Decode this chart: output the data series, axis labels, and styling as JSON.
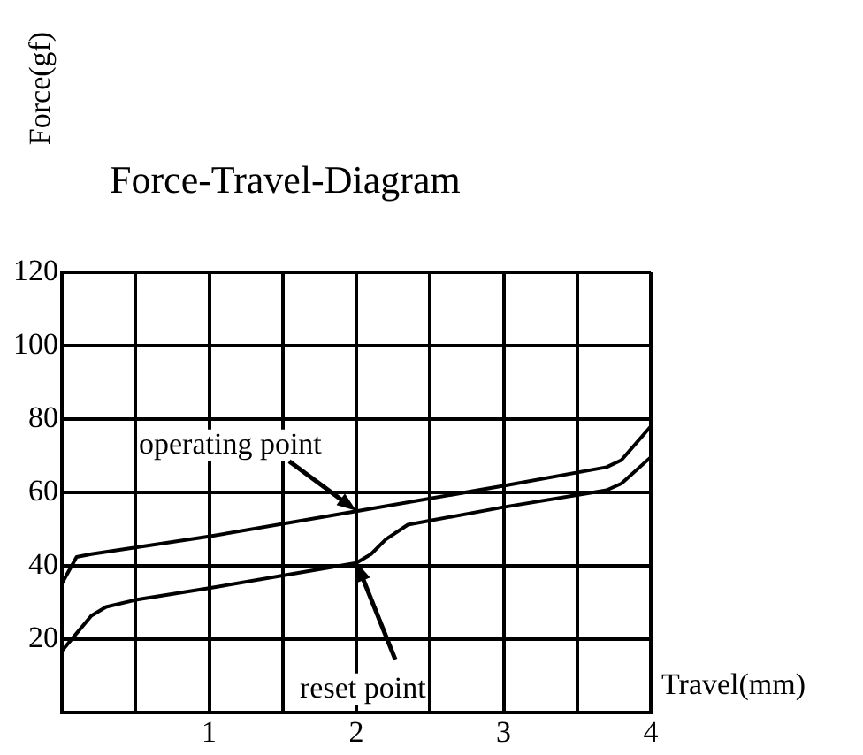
{
  "chart_data": {
    "type": "line",
    "title": "Force-Travel-Diagram",
    "xlabel": "Travel(mm)",
    "ylabel": "Force(gf)",
    "xlim": [
      0,
      4
    ],
    "xticks": [
      {
        "value": 0,
        "label": null
      },
      {
        "value": 0.5,
        "label": null
      },
      1,
      {
        "value": 1.5,
        "label": null
      },
      2,
      {
        "value": 2.5,
        "label": null
      },
      3,
      {
        "value": 3.5,
        "label": null
      },
      4
    ],
    "ylim": [
      0,
      120
    ],
    "yticks": [
      {
        "value": 0,
        "label": null
      },
      20,
      40,
      60,
      80,
      100,
      120
    ],
    "grid": true,
    "legend": false,
    "marker": "none",
    "line_style": "solid",
    "series": [
      {
        "color": "#000000",
        "x": [
          0,
          0.1,
          0.2,
          1,
          2,
          3,
          3.7,
          3.8,
          4
        ],
        "values": [
          35.2,
          42.4,
          43.2,
          48,
          54.9,
          61.8,
          66.9,
          68.8,
          78
        ]
      },
      {
        "color": "#000000",
        "x": [
          0,
          0.1,
          0.2,
          0.3,
          0.5,
          1,
          2,
          2.1,
          2.2,
          2.35,
          3,
          3.7,
          3.8,
          4
        ],
        "values": [
          16.8,
          21.6,
          26.4,
          28.8,
          30.7,
          33.9,
          40.8,
          43.2,
          47.2,
          51.2,
          56,
          60.6,
          62.4,
          69.6
        ]
      }
    ],
    "annotations": [
      {
        "text": "operating point",
        "x": 2,
        "y": 55
      },
      {
        "text": "reset point",
        "x": 2,
        "y": 41
      }
    ]
  }
}
